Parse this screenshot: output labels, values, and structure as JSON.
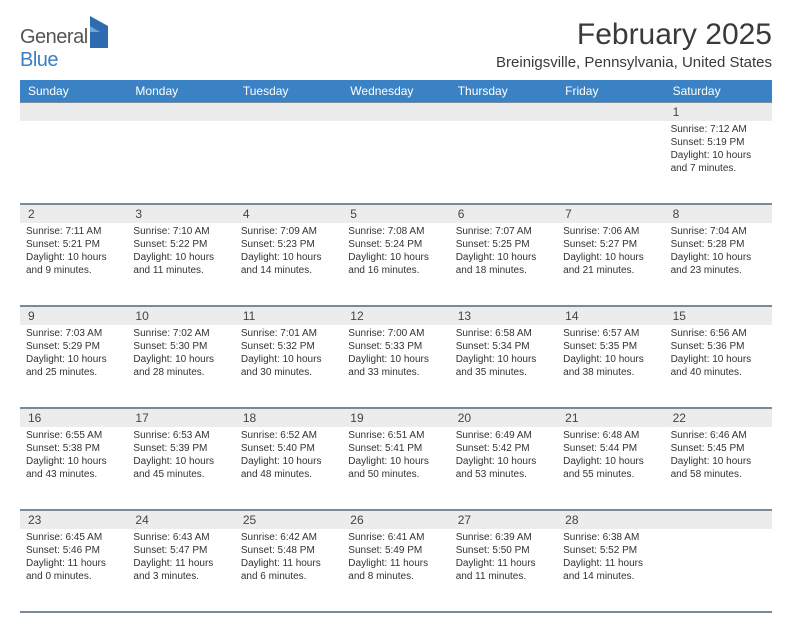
{
  "logo": {
    "text1": "General",
    "text2": "Blue"
  },
  "title": "February 2025",
  "location": "Breinigsville, Pennsylvania, United States",
  "colors": {
    "header_bg": "#3b82c4",
    "header_text": "#ffffff",
    "numrow_bg": "#ececec",
    "border": "#7a8a9a",
    "body_text": "#333333",
    "title_text": "#3a3a3a"
  },
  "weekdays": [
    "Sunday",
    "Monday",
    "Tuesday",
    "Wednesday",
    "Thursday",
    "Friday",
    "Saturday"
  ],
  "weeks": [
    {
      "nums": [
        "",
        "",
        "",
        "",
        "",
        "",
        "1"
      ],
      "cells": [
        null,
        null,
        null,
        null,
        null,
        null,
        {
          "sunrise": "7:12 AM",
          "sunset": "5:19 PM",
          "dl1": "Daylight: 10 hours",
          "dl2": "and 7 minutes."
        }
      ]
    },
    {
      "nums": [
        "2",
        "3",
        "4",
        "5",
        "6",
        "7",
        "8"
      ],
      "cells": [
        {
          "sunrise": "7:11 AM",
          "sunset": "5:21 PM",
          "dl1": "Daylight: 10 hours",
          "dl2": "and 9 minutes."
        },
        {
          "sunrise": "7:10 AM",
          "sunset": "5:22 PM",
          "dl1": "Daylight: 10 hours",
          "dl2": "and 11 minutes."
        },
        {
          "sunrise": "7:09 AM",
          "sunset": "5:23 PM",
          "dl1": "Daylight: 10 hours",
          "dl2": "and 14 minutes."
        },
        {
          "sunrise": "7:08 AM",
          "sunset": "5:24 PM",
          "dl1": "Daylight: 10 hours",
          "dl2": "and 16 minutes."
        },
        {
          "sunrise": "7:07 AM",
          "sunset": "5:25 PM",
          "dl1": "Daylight: 10 hours",
          "dl2": "and 18 minutes."
        },
        {
          "sunrise": "7:06 AM",
          "sunset": "5:27 PM",
          "dl1": "Daylight: 10 hours",
          "dl2": "and 21 minutes."
        },
        {
          "sunrise": "7:04 AM",
          "sunset": "5:28 PM",
          "dl1": "Daylight: 10 hours",
          "dl2": "and 23 minutes."
        }
      ]
    },
    {
      "nums": [
        "9",
        "10",
        "11",
        "12",
        "13",
        "14",
        "15"
      ],
      "cells": [
        {
          "sunrise": "7:03 AM",
          "sunset": "5:29 PM",
          "dl1": "Daylight: 10 hours",
          "dl2": "and 25 minutes."
        },
        {
          "sunrise": "7:02 AM",
          "sunset": "5:30 PM",
          "dl1": "Daylight: 10 hours",
          "dl2": "and 28 minutes."
        },
        {
          "sunrise": "7:01 AM",
          "sunset": "5:32 PM",
          "dl1": "Daylight: 10 hours",
          "dl2": "and 30 minutes."
        },
        {
          "sunrise": "7:00 AM",
          "sunset": "5:33 PM",
          "dl1": "Daylight: 10 hours",
          "dl2": "and 33 minutes."
        },
        {
          "sunrise": "6:58 AM",
          "sunset": "5:34 PM",
          "dl1": "Daylight: 10 hours",
          "dl2": "and 35 minutes."
        },
        {
          "sunrise": "6:57 AM",
          "sunset": "5:35 PM",
          "dl1": "Daylight: 10 hours",
          "dl2": "and 38 minutes."
        },
        {
          "sunrise": "6:56 AM",
          "sunset": "5:36 PM",
          "dl1": "Daylight: 10 hours",
          "dl2": "and 40 minutes."
        }
      ]
    },
    {
      "nums": [
        "16",
        "17",
        "18",
        "19",
        "20",
        "21",
        "22"
      ],
      "cells": [
        {
          "sunrise": "6:55 AM",
          "sunset": "5:38 PM",
          "dl1": "Daylight: 10 hours",
          "dl2": "and 43 minutes."
        },
        {
          "sunrise": "6:53 AM",
          "sunset": "5:39 PM",
          "dl1": "Daylight: 10 hours",
          "dl2": "and 45 minutes."
        },
        {
          "sunrise": "6:52 AM",
          "sunset": "5:40 PM",
          "dl1": "Daylight: 10 hours",
          "dl2": "and 48 minutes."
        },
        {
          "sunrise": "6:51 AM",
          "sunset": "5:41 PM",
          "dl1": "Daylight: 10 hours",
          "dl2": "and 50 minutes."
        },
        {
          "sunrise": "6:49 AM",
          "sunset": "5:42 PM",
          "dl1": "Daylight: 10 hours",
          "dl2": "and 53 minutes."
        },
        {
          "sunrise": "6:48 AM",
          "sunset": "5:44 PM",
          "dl1": "Daylight: 10 hours",
          "dl2": "and 55 minutes."
        },
        {
          "sunrise": "6:46 AM",
          "sunset": "5:45 PM",
          "dl1": "Daylight: 10 hours",
          "dl2": "and 58 minutes."
        }
      ]
    },
    {
      "nums": [
        "23",
        "24",
        "25",
        "26",
        "27",
        "28",
        ""
      ],
      "cells": [
        {
          "sunrise": "6:45 AM",
          "sunset": "5:46 PM",
          "dl1": "Daylight: 11 hours",
          "dl2": "and 0 minutes."
        },
        {
          "sunrise": "6:43 AM",
          "sunset": "5:47 PM",
          "dl1": "Daylight: 11 hours",
          "dl2": "and 3 minutes."
        },
        {
          "sunrise": "6:42 AM",
          "sunset": "5:48 PM",
          "dl1": "Daylight: 11 hours",
          "dl2": "and 6 minutes."
        },
        {
          "sunrise": "6:41 AM",
          "sunset": "5:49 PM",
          "dl1": "Daylight: 11 hours",
          "dl2": "and 8 minutes."
        },
        {
          "sunrise": "6:39 AM",
          "sunset": "5:50 PM",
          "dl1": "Daylight: 11 hours",
          "dl2": "and 11 minutes."
        },
        {
          "sunrise": "6:38 AM",
          "sunset": "5:52 PM",
          "dl1": "Daylight: 11 hours",
          "dl2": "and 14 minutes."
        },
        null
      ]
    }
  ],
  "labels": {
    "sunrise": "Sunrise:",
    "sunset": "Sunset:"
  }
}
